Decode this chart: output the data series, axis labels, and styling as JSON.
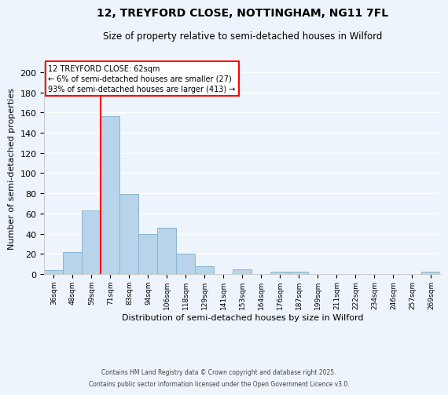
{
  "title_line1": "12, TREYFORD CLOSE, NOTTINGHAM, NG11 7FL",
  "title_line2": "Size of property relative to semi-detached houses in Wilford",
  "xlabel": "Distribution of semi-detached houses by size in Wilford",
  "ylabel": "Number of semi-detached properties",
  "bar_labels": [
    "36sqm",
    "48sqm",
    "59sqm",
    "71sqm",
    "83sqm",
    "94sqm",
    "106sqm",
    "118sqm",
    "129sqm",
    "141sqm",
    "153sqm",
    "164sqm",
    "176sqm",
    "187sqm",
    "199sqm",
    "211sqm",
    "222sqm",
    "234sqm",
    "246sqm",
    "257sqm",
    "269sqm"
  ],
  "bar_heights": [
    4,
    22,
    63,
    156,
    79,
    40,
    46,
    20,
    8,
    0,
    5,
    0,
    2,
    2,
    0,
    0,
    0,
    0,
    0,
    0,
    2
  ],
  "bar_color": "#b8d4ea",
  "bar_edge_color": "#8ab4d4",
  "property_line_color": "red",
  "prop_line_index": 2.5,
  "ylim": [
    0,
    210
  ],
  "yticks": [
    0,
    20,
    40,
    60,
    80,
    100,
    120,
    140,
    160,
    180,
    200
  ],
  "annotation_title": "12 TREYFORD CLOSE: 62sqm",
  "annotation_line1": "← 6% of semi-detached houses are smaller (27)",
  "annotation_line2": "93% of semi-detached houses are larger (413) →",
  "footer_line1": "Contains HM Land Registry data © Crown copyright and database right 2025.",
  "footer_line2": "Contains public sector information licensed under the Open Government Licence v3.0.",
  "background_color": "#eef4fb",
  "grid_color": "#ffffff"
}
